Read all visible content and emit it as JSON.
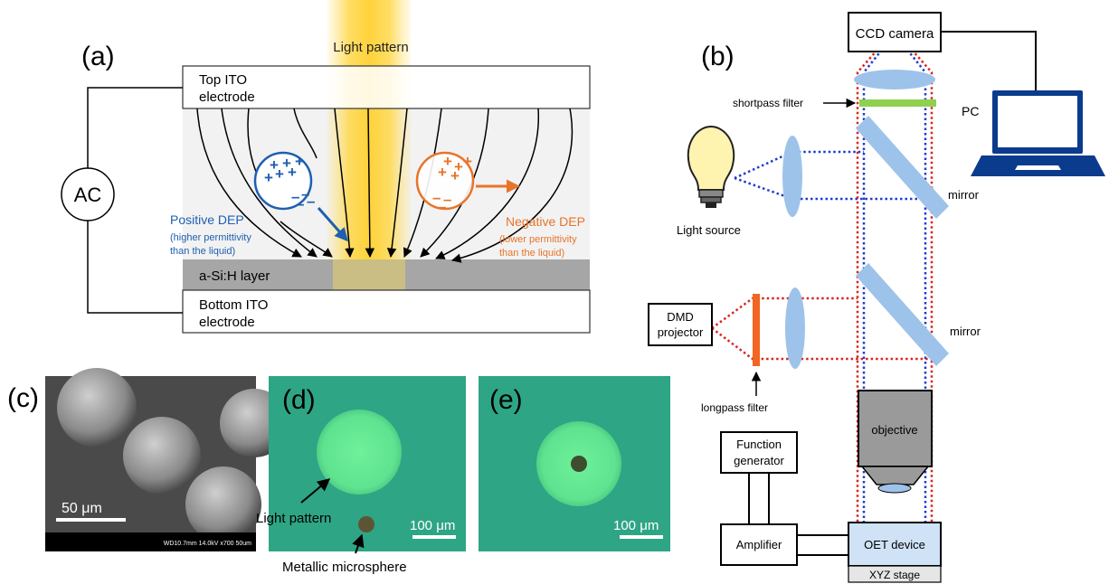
{
  "panel_a": {
    "label": "(a)",
    "light_pattern_label": "Light  pattern",
    "top_electrode": [
      "Top ITO",
      "electrode"
    ],
    "bottom_electrode": [
      "Bottom ITO",
      "electrode"
    ],
    "asi_layer": "a-Si:H layer",
    "ac_label": "AC",
    "positive_dep": {
      "title": "Positive DEP",
      "detail": [
        "(higher permittivity",
        "than the liquid)"
      ],
      "color": "#1f5fb0",
      "charges_plus": "+",
      "charges_minus": "–"
    },
    "negative_dep": {
      "title": "Negative DEP",
      "detail": [
        "(lower permittivity",
        "than the liquid)"
      ],
      "color": "#e8742a",
      "charges_plus": "+",
      "charges_minus": "–"
    }
  },
  "panel_b": {
    "label": "(b)",
    "ccd_camera": "CCD camera",
    "pc": "PC",
    "shortpass_filter": "shortpass filter",
    "light_source": "Light source",
    "mirror_top": "mirror",
    "mirror_bottom": "mirror",
    "dmd_projector": [
      "DMD",
      "projector"
    ],
    "longpass_filter": "longpass filter",
    "objective": "objective",
    "function_generator": [
      "Function",
      "generator"
    ],
    "amplifier": "Amplifier",
    "oet_device": "OET device",
    "xyz_stage": "XYZ stage"
  },
  "panel_c": {
    "label": "(c)",
    "scale_bar": "50 μm",
    "sem_info": "WD10.7mm 14.0kV x700     50um"
  },
  "panel_d": {
    "label": "(d)",
    "light_pattern": "Light pattern",
    "microsphere": "Metallic microsphere",
    "scale_bar": "100 μm"
  },
  "panel_e": {
    "label": "(e)",
    "scale_bar": "100 μm"
  },
  "colors": {
    "blue_path": "#1f3ccf",
    "red_path": "#d9251d",
    "optics": "#9ec3ea",
    "filter_green": "#8fd14f",
    "filter_orange": "#f26522",
    "laptop": "#0a3b8c",
    "sample_bg": "#2ea585",
    "spot": "#62e88f"
  }
}
